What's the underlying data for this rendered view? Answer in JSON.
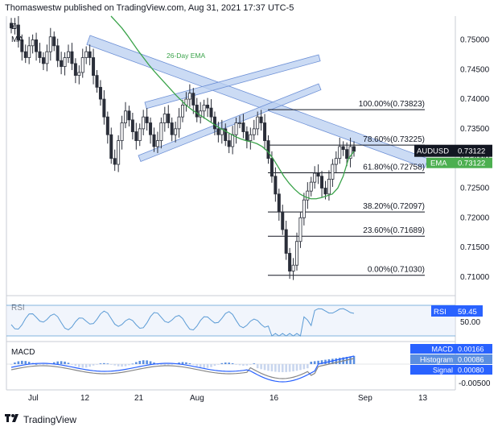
{
  "header": {
    "attribution": "Thomaswestw published on TradingView.com, Aug 31, 2021 17:37 UTC-5",
    "ind1": "E",
    "ind2": "MA"
  },
  "footer": {
    "brand": "TradingView",
    "logo_icon": "tradingview-logo-icon"
  },
  "colors": {
    "candle": "#2a2e39",
    "ema": "#3aa34a",
    "channel_fill": "#b9cff0",
    "channel_edge": "#6d90d6",
    "fib": "#131722",
    "price_tag": "#131722",
    "ema_tag": "#4caf50",
    "rsi_line": "#5b9bd5",
    "rsi_tag": "#2962ff",
    "macd_line": "#2962ff",
    "signal_line": "#888888",
    "hist_pos": "#5b8fe0",
    "hist_neg": "#c9d6ee"
  },
  "chart_data": [
    {
      "type": "candlestick",
      "title": "",
      "symbol": "AUDUSD",
      "x_ticks": [
        "Jul",
        "12",
        "21",
        "Aug",
        "16",
        "Sep",
        "13"
      ],
      "y_ticks": [
        "0.75000",
        "0.74500",
        "0.74000",
        "0.73500",
        "0.73000",
        "0.72500",
        "0.72000",
        "0.71500",
        "0.71000"
      ],
      "ylim": [
        0.707,
        0.754
      ],
      "grid": false,
      "annotation_ema": "26-Day EMA",
      "price_label": "AUDUSD",
      "price_value": "0.73122",
      "ema_label": "EMA",
      "ema_value": "0.73122",
      "fib_levels": [
        {
          "label": "100.00%(0.73823)",
          "value": 0.73823
        },
        {
          "label": "78.60%(0.73225)",
          "value": 0.73225
        },
        {
          "label": "61.80%(0.72758)",
          "value": 0.72758
        },
        {
          "label": "38.20%(0.72097)",
          "value": 0.72097
        },
        {
          "label": "23.60%(0.71689)",
          "value": 0.71689
        },
        {
          "label": "0.00%(0.71030)",
          "value": 0.7103
        }
      ],
      "close": [
        0.752,
        0.7525,
        0.75,
        0.748,
        0.747,
        0.749,
        0.75,
        0.748,
        0.747,
        0.746,
        0.748,
        0.7505,
        0.749,
        0.7465,
        0.7455,
        0.747,
        0.748,
        0.746,
        0.744,
        0.7445,
        0.747,
        0.748,
        0.747,
        0.744,
        0.742,
        0.74,
        0.737,
        0.734,
        0.73,
        0.729,
        0.733,
        0.736,
        0.738,
        0.7365,
        0.7345,
        0.733,
        0.735,
        0.737,
        0.736,
        0.734,
        0.732,
        0.733,
        0.736,
        0.7375,
        0.736,
        0.734,
        0.735,
        0.737,
        0.739,
        0.74,
        0.741,
        0.739,
        0.737,
        0.738,
        0.739,
        0.7385,
        0.737,
        0.735,
        0.734,
        0.735,
        0.733,
        0.732,
        0.734,
        0.736,
        0.736,
        0.7345,
        0.733,
        0.734,
        0.735,
        0.737,
        0.736,
        0.733,
        0.73,
        0.727,
        0.724,
        0.721,
        0.718,
        0.714,
        0.711,
        0.712,
        0.716,
        0.72,
        0.723,
        0.7245,
        0.726,
        0.7275,
        0.727,
        0.725,
        0.724,
        0.7265,
        0.729,
        0.73,
        0.732,
        0.7315,
        0.73,
        0.732,
        0.7312
      ],
      "ema": [
        0.754,
        0.753,
        0.752,
        0.7508,
        0.7495,
        0.7482,
        0.747,
        0.7458,
        0.7447,
        0.7437,
        0.7427,
        0.7417,
        0.7407,
        0.7398,
        0.7389,
        0.7382,
        0.7376,
        0.737,
        0.7364,
        0.7358,
        0.7352,
        0.7347,
        0.7342,
        0.7337,
        0.7333,
        0.733,
        0.7328,
        0.7325,
        0.732,
        0.7312,
        0.73,
        0.7285,
        0.727,
        0.7258,
        0.7248,
        0.724,
        0.7235,
        0.7232,
        0.7232,
        0.7234,
        0.7237,
        0.724,
        0.725,
        0.727,
        0.73,
        0.7312
      ],
      "rsi_value": "59.45",
      "rsi_tick": "50.00",
      "macd": {
        "macd": "0.00166",
        "histogram": "0.00086",
        "signal": "0.00080"
      },
      "macd_tick": "-0.00500",
      "panel_labels": {
        "rsi": "RSI",
        "macd": "MACD",
        "histogram": "Histogram",
        "signal": "Signal"
      }
    }
  ]
}
